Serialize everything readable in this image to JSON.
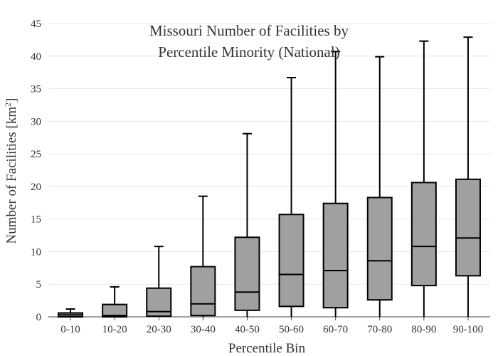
{
  "chart_data": {
    "type": "box",
    "title_lines": [
      "Missouri Number of Facilities by",
      "Percentile Minority (National)"
    ],
    "xlabel": "Percentile Bin",
    "ylabel": "Number of Facilities",
    "ylabel_unit": "[km",
    "ylabel_unit_sup": "2",
    "ylabel_unit_close": "]",
    "ylim": [
      0,
      45
    ],
    "yticks": [
      0,
      5,
      10,
      15,
      20,
      25,
      30,
      35,
      40,
      45
    ],
    "grid": true,
    "box_color": "#a0a0a0",
    "line_color": "#000000",
    "categories": [
      "0-10",
      "10-20",
      "20-30",
      "30-40",
      "40-50",
      "50-60",
      "60-70",
      "70-80",
      "80-90",
      "90-100"
    ],
    "boxes": [
      {
        "min": 0,
        "q1": 0,
        "median": 0.3,
        "q3": 0.6,
        "max": 1.2
      },
      {
        "min": 0,
        "q1": 0,
        "median": 0.2,
        "q3": 1.9,
        "max": 4.6
      },
      {
        "min": 0,
        "q1": 0.1,
        "median": 0.8,
        "q3": 4.4,
        "max": 10.8
      },
      {
        "min": 0,
        "q1": 0.2,
        "median": 2.0,
        "q3": 7.7,
        "max": 18.5
      },
      {
        "min": 0,
        "q1": 1.0,
        "median": 3.8,
        "q3": 12.2,
        "max": 28.1
      },
      {
        "min": 0,
        "q1": 1.6,
        "median": 6.5,
        "q3": 15.7,
        "max": 36.7
      },
      {
        "min": 0,
        "q1": 1.4,
        "median": 7.1,
        "q3": 17.4,
        "max": 40.7
      },
      {
        "min": 0,
        "q1": 2.6,
        "median": 8.6,
        "q3": 18.3,
        "max": 39.9
      },
      {
        "min": 0,
        "q1": 4.8,
        "median": 10.8,
        "q3": 20.6,
        "max": 42.3
      },
      {
        "min": 0,
        "q1": 6.3,
        "median": 12.1,
        "q3": 21.1,
        "max": 42.9
      }
    ]
  }
}
